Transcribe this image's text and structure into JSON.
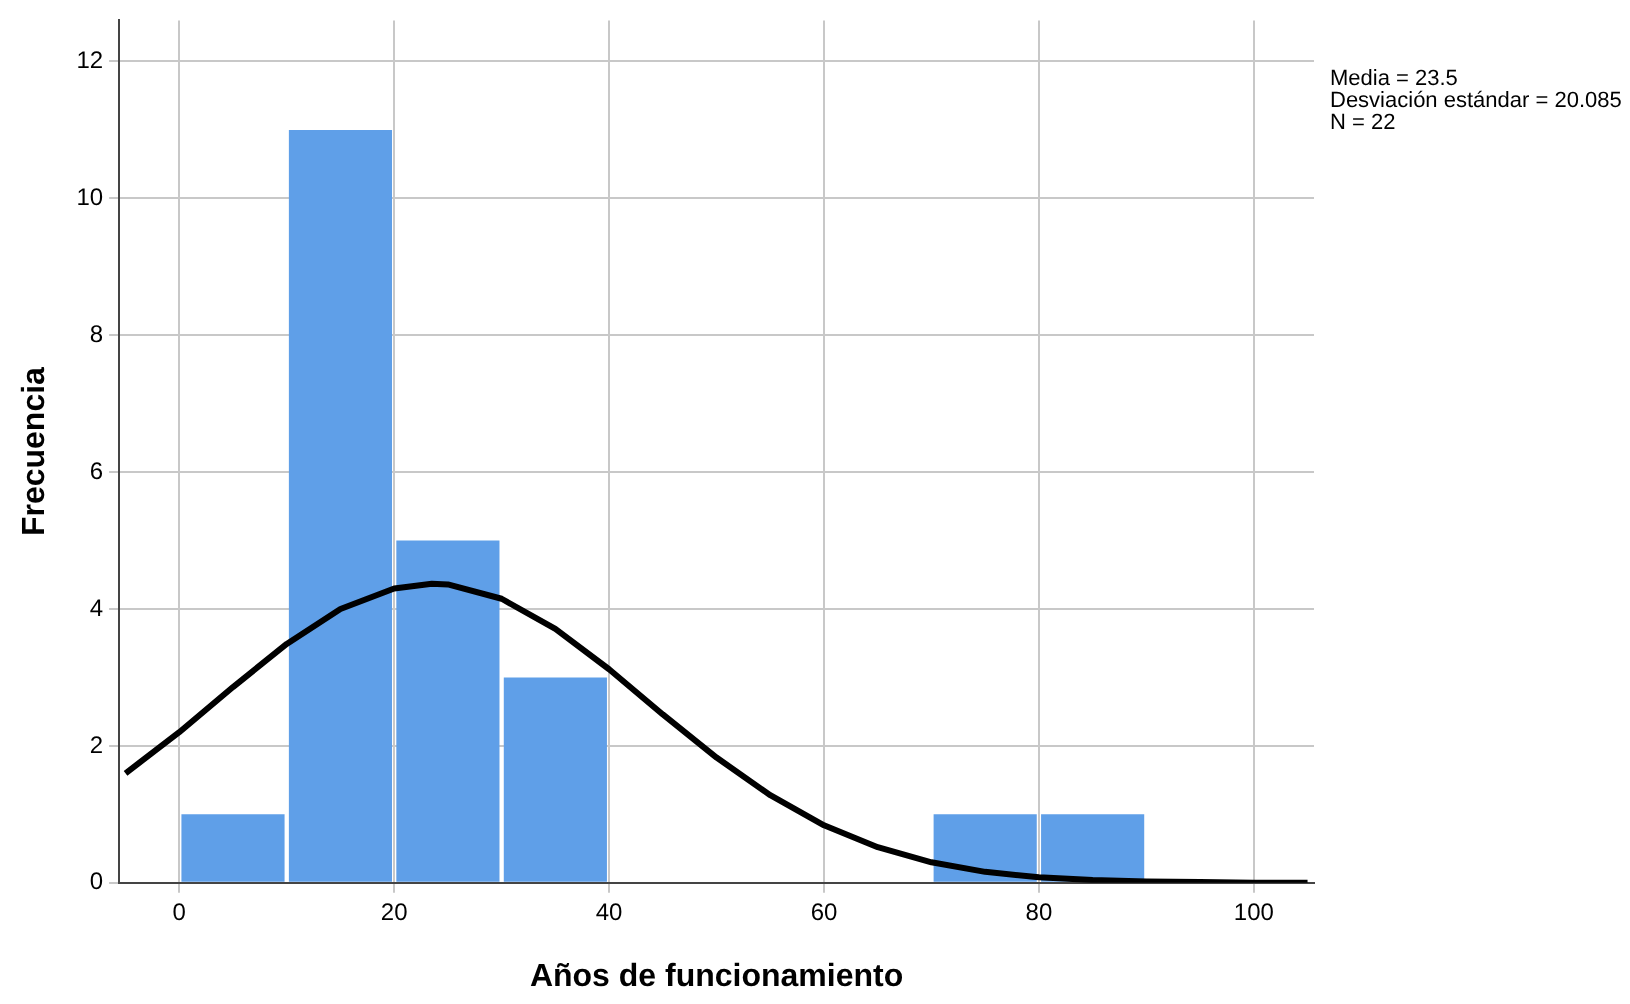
{
  "chart_data": {
    "type": "histogram",
    "xlabel": "Años de funcionamiento",
    "ylabel": "Frecuencia",
    "bins": [
      0,
      10,
      20,
      30,
      40,
      50,
      60,
      70,
      80,
      90
    ],
    "values": [
      1,
      11,
      5,
      3,
      0,
      0,
      0,
      1,
      1
    ],
    "color": "#5f9fe8",
    "series": [
      {
        "type": "line",
        "color": "#000000",
        "x": [
          -5,
          0,
          5,
          10,
          15,
          20,
          23.5,
          25,
          30,
          35,
          40,
          45,
          50,
          55,
          60,
          65,
          70,
          75,
          80,
          85,
          90,
          95,
          100,
          105
        ],
        "values": [
          1.6,
          2.2,
          2.86,
          3.49,
          4.0,
          4.3,
          4.37,
          4.36,
          4.15,
          3.71,
          3.12,
          2.46,
          1.83,
          1.28,
          0.84,
          0.52,
          0.3,
          0.16,
          0.08,
          0.04,
          0.02,
          0.01,
          0,
          0
        ]
      }
    ],
    "xlim": [
      -5.6,
      105.6
    ],
    "xticks": [
      0,
      20,
      40,
      60,
      80,
      100
    ],
    "ylim": [
      0,
      12.6
    ],
    "yticks": [
      0,
      2,
      4,
      6,
      8,
      10,
      12
    ],
    "grid": true,
    "legend": false,
    "annotations": [
      "Media = 23.5",
      "Desviación estándar = 20.085",
      "N = 22"
    ]
  }
}
